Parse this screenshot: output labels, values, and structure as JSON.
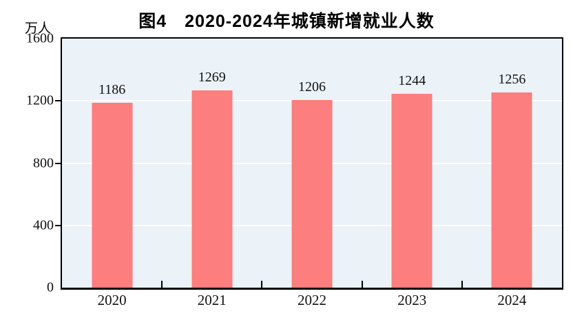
{
  "page": {
    "title": "图4　2020-2024年城镇新增就业人数",
    "y_axis_unit": "万人"
  },
  "chart_data": {
    "type": "bar",
    "title": "图4　2020-2024年城镇新增就业人数",
    "categories": [
      "2020",
      "2021",
      "2022",
      "2023",
      "2024"
    ],
    "values": [
      1186,
      1269,
      1206,
      1244,
      1256
    ],
    "xlabel": "",
    "ylabel": "万人",
    "ylim": [
      0,
      1600
    ],
    "yticks": [
      0,
      400,
      800,
      1200,
      1600
    ],
    "grid": "horizontal white gridlines at 400, 800 and 1200; bars drawn over gridlines",
    "legend_position": "none",
    "value_labels_shown": true,
    "colors": {
      "bar": "#FC7E7E",
      "plot_background": "#EBF2F8",
      "gridline": "#FFFFFF",
      "axis_border": "#000000",
      "text": "#111111"
    }
  }
}
